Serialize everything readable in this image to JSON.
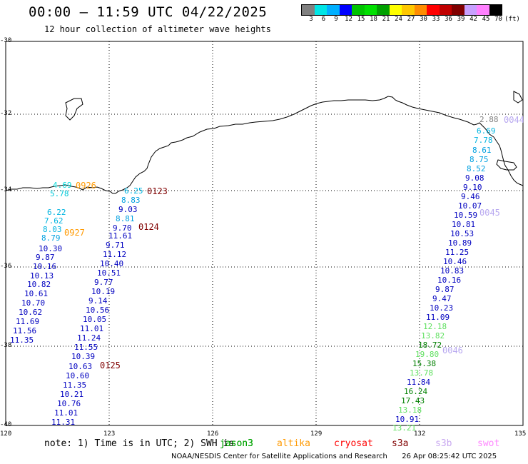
{
  "header": {
    "title": "00:00 — 11:59 UTC 04/22/2025",
    "subtitle": "12 hour collection of altimeter wave heights"
  },
  "scale": {
    "unit": "(ft)",
    "colors": [
      "#808080",
      "#00e5e5",
      "#00b0ff",
      "#0000ff",
      "#00c400",
      "#00e000",
      "#00a000",
      "#ffff00",
      "#ffc800",
      "#ff8c00",
      "#ff0000",
      "#c00000",
      "#800000",
      "#c8a0ff",
      "#ff80ff",
      "#000000"
    ],
    "labels": [
      "3",
      "6",
      "9",
      "12",
      "15",
      "18",
      "21",
      "24",
      "27",
      "30",
      "33",
      "36",
      "39",
      "42",
      "45",
      "70"
    ]
  },
  "axes": {
    "lat_labels": [
      "-30",
      "-32",
      "-34",
      "-36",
      "-38",
      "-40"
    ],
    "lon_labels": [
      "120",
      "123",
      "126",
      "129",
      "132",
      "135"
    ]
  },
  "passes": [
    {
      "id": "0926",
      "label": "0926",
      "label_color": "#ff9900",
      "values": [
        {
          "v": "4.69",
          "c": "#00d8d8"
        },
        {
          "v": "5.78",
          "c": "#00c8d8"
        }
      ]
    },
    {
      "id": "0927",
      "label": "0927",
      "label_color": "#ff9900",
      "values": [
        {
          "v": "6.22",
          "c": "#00b4e0"
        },
        {
          "v": "7.62",
          "c": "#00b4e0"
        },
        {
          "v": "8.03",
          "c": "#00b4e0"
        },
        {
          "v": "8.79",
          "c": "#00a0e0"
        },
        {
          "v": "10.30",
          "c": "#0000c0"
        },
        {
          "v": "9.87",
          "c": "#0000c0"
        },
        {
          "v": "10.16",
          "c": "#0000c0"
        },
        {
          "v": "10.13",
          "c": "#0000c0"
        },
        {
          "v": "10.82",
          "c": "#0000c0"
        },
        {
          "v": "10.61",
          "c": "#0000c0"
        },
        {
          "v": "10.70",
          "c": "#0000c0"
        },
        {
          "v": "10.62",
          "c": "#0000c0"
        },
        {
          "v": "11.69",
          "c": "#0000c0"
        },
        {
          "v": "11.56",
          "c": "#0000c0"
        },
        {
          "v": "11.35",
          "c": "#0000c0"
        }
      ]
    },
    {
      "id": "0123",
      "label": "0123",
      "label_color": "#800000",
      "values": [
        {
          "v": "6.25",
          "c": "#00b4e0"
        },
        {
          "v": "8.83",
          "c": "#00a0e0"
        },
        {
          "v": "9.03",
          "c": "#0000c0"
        },
        {
          "v": "8.81",
          "c": "#00a0e0"
        },
        {
          "v": "9.70",
          "c": "#0000c0"
        }
      ]
    },
    {
      "id": "0124",
      "label": "0124",
      "label_color": "#800000",
      "values": [
        {
          "v": "11.61",
          "c": "#0000c0"
        },
        {
          "v": "9.71",
          "c": "#0000c0"
        },
        {
          "v": "11.12",
          "c": "#0000c0"
        },
        {
          "v": "10.40",
          "c": "#0000c0"
        },
        {
          "v": "10.51",
          "c": "#0000c0"
        },
        {
          "v": "9.77",
          "c": "#0000c0"
        },
        {
          "v": "10.19",
          "c": "#0000c0"
        },
        {
          "v": "9.14",
          "c": "#0000c0"
        },
        {
          "v": "10.56",
          "c": "#0000c0"
        },
        {
          "v": "10.05",
          "c": "#0000c0"
        },
        {
          "v": "11.01",
          "c": "#0000c0"
        },
        {
          "v": "11.24",
          "c": "#0000c0"
        },
        {
          "v": "11.55",
          "c": "#0000c0"
        },
        {
          "v": "10.39",
          "c": "#0000c0"
        }
      ]
    },
    {
      "id": "0125",
      "label": "0125",
      "label_color": "#800000",
      "values": [
        {
          "v": "10.63",
          "c": "#0000c0"
        },
        {
          "v": "10.60",
          "c": "#0000c0"
        },
        {
          "v": "11.35",
          "c": "#0000c0"
        },
        {
          "v": "10.21",
          "c": "#0000c0"
        },
        {
          "v": "10.76",
          "c": "#0000c0"
        },
        {
          "v": "11.01",
          "c": "#0000c0"
        },
        {
          "v": "11.31",
          "c": "#0000c0"
        }
      ]
    },
    {
      "id": "0044",
      "label": "0044",
      "label_color": "#b8a8f0",
      "values": [
        {
          "v": "2.88",
          "c": "#808080"
        },
        {
          "v": "6.69",
          "c": "#00b4e0"
        },
        {
          "v": "7.78",
          "c": "#00b4e0"
        },
        {
          "v": "8.61",
          "c": "#00a0e0"
        },
        {
          "v": "8.75",
          "c": "#00a0e0"
        },
        {
          "v": "8.52",
          "c": "#00a0e0"
        },
        {
          "v": "9.08",
          "c": "#0000c0"
        },
        {
          "v": "9.10",
          "c": "#0000c0"
        },
        {
          "v": "9.46",
          "c": "#0000c0"
        },
        {
          "v": "10.07",
          "c": "#0000c0"
        }
      ]
    },
    {
      "id": "0045",
      "label": "0045",
      "label_color": "#b8a8f0",
      "values": [
        {
          "v": "10.59",
          "c": "#0000c0"
        },
        {
          "v": "10.81",
          "c": "#0000c0"
        },
        {
          "v": "10.53",
          "c": "#0000c0"
        },
        {
          "v": "10.89",
          "c": "#0000c0"
        },
        {
          "v": "11.25",
          "c": "#0000c0"
        },
        {
          "v": "10.46",
          "c": "#0000c0"
        },
        {
          "v": "10.83",
          "c": "#0000c0"
        },
        {
          "v": "10.16",
          "c": "#0000c0"
        },
        {
          "v": "9.87",
          "c": "#0000c0"
        },
        {
          "v": "9.47",
          "c": "#0000c0"
        },
        {
          "v": "10.23",
          "c": "#0000c0"
        },
        {
          "v": "11.09",
          "c": "#0000c0"
        },
        {
          "v": "12.18",
          "c": "#60e060"
        },
        {
          "v": "13.82",
          "c": "#60e060"
        },
        {
          "v": "18.72",
          "c": "#008000"
        },
        {
          "v": "19.80",
          "c": "#60e060"
        }
      ]
    },
    {
      "id": "0046",
      "label": "0046",
      "label_color": "#b8a8f0",
      "values": [
        {
          "v": "15.38",
          "c": "#008000"
        },
        {
          "v": "13.78",
          "c": "#60e060"
        },
        {
          "v": "11.84",
          "c": "#0000c0"
        },
        {
          "v": "16.24",
          "c": "#008000"
        },
        {
          "v": "17.43",
          "c": "#008000"
        },
        {
          "v": "13.18",
          "c": "#60e060"
        },
        {
          "v": "10.91",
          "c": "#0000c0"
        },
        {
          "v": "13.21",
          "c": "#60e060"
        }
      ]
    }
  ],
  "note": {
    "text": "note: 1) Time is in UTC; 2) SWH is",
    "satellites": [
      {
        "name": "jason3",
        "color": "#006400"
      },
      {
        "name": "jason3",
        "color": "#00aa00"
      },
      {
        "name": "altika",
        "color": "#ff9900"
      },
      {
        "name": "cryosat",
        "color": "#ff0000"
      },
      {
        "name": "s3a",
        "color": "#800000"
      },
      {
        "name": "s3b",
        "color": "#c8a8f0"
      },
      {
        "name": "swot",
        "color": "#ff88ff"
      }
    ]
  },
  "footer": {
    "credit": "NOAA/NESDIS Center for Satellite Applications and Research",
    "timestamp": "26 Apr 08:25:42 UTC 2025"
  }
}
